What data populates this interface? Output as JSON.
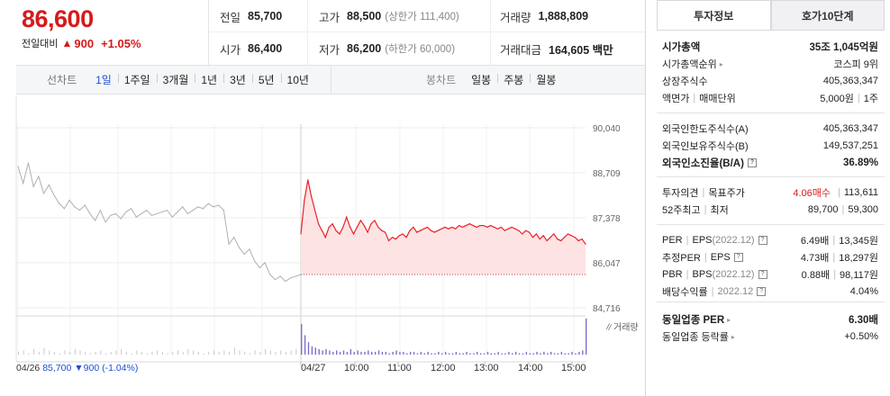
{
  "price": {
    "current": "86,600",
    "change_label": "전일대비",
    "change_arrow": "▲",
    "change_value": "900",
    "change_pct": "+1.05%"
  },
  "info": {
    "prev_close": {
      "label": "전일",
      "value": "85,700"
    },
    "high": {
      "label": "고가",
      "value": "88,500",
      "sub": "(상한가 111,400)"
    },
    "volume": {
      "label": "거래량",
      "value": "1,888,809"
    },
    "open": {
      "label": "시가",
      "value": "86,400"
    },
    "low": {
      "label": "저가",
      "value": "86,200",
      "sub": "(하한가 60,000)"
    },
    "trade_value": {
      "label": "거래대금",
      "value": "164,605 백만"
    }
  },
  "toolbar": {
    "period_label": "선차트",
    "periods": [
      "1일",
      "1주일",
      "3개월",
      "1년",
      "3년",
      "5년",
      "10년"
    ],
    "active_period": "1일",
    "candle_label": "봉차트",
    "candles": [
      "일봉",
      "주봉",
      "월봉"
    ]
  },
  "chart_data": {
    "type": "line",
    "title": "",
    "ylim": [
      84716,
      90040
    ],
    "y_ticks": [
      "90,040",
      "88,709",
      "87,378",
      "86,047",
      "84,716"
    ],
    "x_ticks": [
      "04/26",
      "04/27",
      "10:00",
      "11:00",
      "12:00",
      "13:00",
      "14:00",
      "15:00"
    ],
    "volume_label": "거래량",
    "prev_day_series": {
      "name": "04/26",
      "values": [
        88900,
        88400,
        89000,
        88300,
        88600,
        88100,
        88350,
        88050,
        87800,
        87650,
        87900,
        87700,
        87600,
        87750,
        87500,
        87300,
        87600,
        87250,
        87450,
        87500,
        87350,
        87550,
        87650,
        87400,
        87500,
        87600,
        87450,
        87500,
        87550,
        87600,
        87400,
        87550,
        87700,
        87500,
        87600,
        87700,
        87650,
        87800,
        87700,
        87750,
        87600,
        86600,
        86800,
        86500,
        86300,
        86450,
        86100,
        85900,
        86050,
        85700,
        85550,
        85650,
        85500,
        85600,
        85650,
        85700
      ]
    },
    "today_series": {
      "name": "04/27",
      "values": [
        86900,
        87900,
        88500,
        88000,
        87600,
        87200,
        87000,
        86800,
        87100,
        87200,
        87000,
        86900,
        87100,
        87400,
        87100,
        86900,
        87100,
        87300,
        87150,
        86950,
        87200,
        87300,
        87100,
        87000,
        86950,
        86700,
        86800,
        86750,
        86850,
        86900,
        86800,
        87000,
        87100,
        86950,
        87000,
        87050,
        87100,
        87000,
        86950,
        87000,
        87050,
        87100,
        87050,
        87100,
        87050,
        87150,
        87100,
        87150,
        87200,
        87150,
        87100,
        87150,
        87150,
        87100,
        87150,
        87100,
        87050,
        87100,
        87000,
        87050,
        87100,
        87050,
        87000,
        86900,
        87000,
        86950,
        86800,
        86900,
        86750,
        86850,
        86700,
        86800,
        86900,
        86750,
        86700,
        86800,
        86900,
        86850,
        86800,
        86700,
        86750,
        86600
      ]
    },
    "prev_close": 85700,
    "prev_footer": {
      "date": "04/26",
      "close": "85,700",
      "arrow": "▼",
      "change": "900",
      "pct": "(-1.04%)"
    },
    "volume_prev": [
      2,
      3,
      1,
      4,
      2,
      5,
      3,
      2,
      1,
      3,
      2,
      4,
      3,
      2,
      1,
      2,
      3,
      1,
      2,
      3,
      4,
      2,
      1,
      3,
      2,
      1,
      2,
      3,
      2,
      1,
      2,
      3,
      2,
      4,
      3,
      2,
      1,
      2,
      3,
      2,
      3,
      2,
      5,
      3,
      2,
      1,
      3,
      2,
      4,
      3,
      2,
      3,
      2,
      3,
      4,
      9
    ],
    "volume_today": [
      22,
      14,
      9,
      6,
      5,
      4,
      3,
      4,
      3,
      2,
      3,
      2,
      3,
      2,
      4,
      2,
      3,
      2,
      2,
      3,
      2,
      2,
      3,
      2,
      2,
      1,
      2,
      3,
      2,
      2,
      1,
      2,
      2,
      1,
      2,
      1,
      2,
      1,
      1,
      2,
      1,
      2,
      1,
      1,
      2,
      1,
      1,
      2,
      1,
      1,
      2,
      1,
      1,
      2,
      1,
      1,
      2,
      1,
      1,
      2,
      1,
      2,
      1,
      1,
      2,
      1,
      1,
      2,
      1,
      2,
      1,
      2,
      1,
      1,
      2,
      1,
      1,
      2,
      1,
      2,
      3,
      26
    ]
  },
  "panel": {
    "tabs": [
      "투자정보",
      "호가10단계"
    ],
    "active_tab": "투자정보",
    "market_cap": {
      "label": "시가총액",
      "value": "35조 1,045억원"
    },
    "market_cap_rank": {
      "label": "시가총액순위",
      "value": "코스피 9위"
    },
    "listed_shares": {
      "label": "상장주식수",
      "value": "405,363,347"
    },
    "par_value": {
      "label": "액면가",
      "label2": "매매단위",
      "value": "5,000원",
      "value2": "1주"
    },
    "foreign_limit": {
      "label": "외국인한도주식수(A)",
      "value": "405,363,347"
    },
    "foreign_held": {
      "label": "외국인보유주식수(B)",
      "value": "149,537,251"
    },
    "foreign_ratio": {
      "label": "외국인소진율(B/A)",
      "value": "36.89%"
    },
    "opinion": {
      "label": "투자의견",
      "label2": "목표주가",
      "value": "4.06매수",
      "value2": "113,611"
    },
    "week52": {
      "label": "52주최고",
      "label2": "최저",
      "value": "89,700",
      "value2": "59,300"
    },
    "per": {
      "label": "PER",
      "label2": "EPS",
      "label3": "(2022.12)",
      "value": "6.49배",
      "value2": "13,345원"
    },
    "est_per": {
      "label": "추정PER",
      "label2": "EPS",
      "value": "4.73배",
      "value2": "18,297원"
    },
    "pbr": {
      "label": "PBR",
      "label2": "BPS",
      "label3": "(2022.12)",
      "value": "0.88배",
      "value2": "98,117원"
    },
    "dividend": {
      "label": "배당수익률",
      "label2": "2022.12",
      "value": "4.04%"
    },
    "sector_per": {
      "label": "동일업종 PER",
      "value": "6.30배"
    },
    "sector_rate": {
      "label": "동일업종 등락률",
      "value": "+0.50%"
    }
  },
  "colors": {
    "up": "#d61a1a",
    "down": "#1a4fd6",
    "today_line": "#e8232b",
    "today_fill": "#fde3e3",
    "prev_line": "#b0b0b0",
    "volume_bar": "#7f6fc9"
  }
}
